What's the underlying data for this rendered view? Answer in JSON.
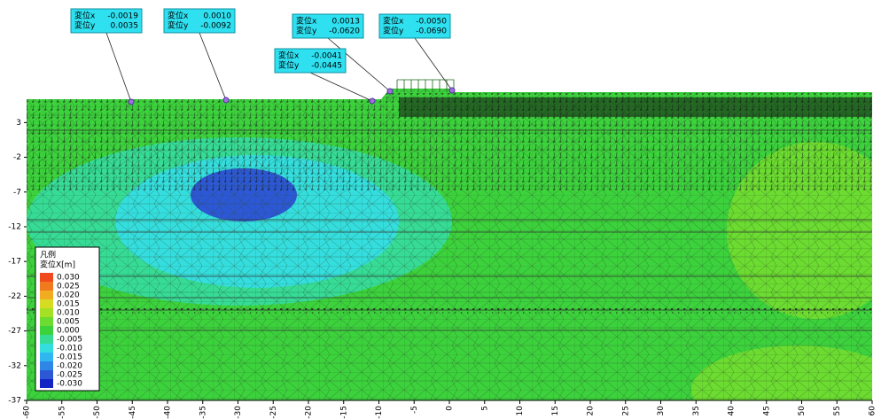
{
  "chart_data": {
    "type": "contour",
    "xlim": [
      -60,
      60
    ],
    "ylim": [
      -37,
      7
    ],
    "xticks": [
      -60,
      -55,
      -50,
      -45,
      -40,
      -35,
      -30,
      -25,
      -20,
      -15,
      -10,
      -5,
      0,
      5,
      10,
      15,
      20,
      25,
      30,
      35,
      40,
      45,
      50,
      55,
      60
    ],
    "yticks": [
      3,
      -2,
      -7,
      -12,
      -17,
      -22,
      -27,
      -32,
      -37
    ],
    "legend": {
      "title": "凡例",
      "subtitle": "変位X[m]",
      "entries": [
        {
          "value": 0.03,
          "label": "0.030",
          "color": "#f04a1c"
        },
        {
          "value": 0.025,
          "label": "0.025",
          "color": "#f27a1e"
        },
        {
          "value": 0.02,
          "label": "0.020",
          "color": "#f2ac22"
        },
        {
          "value": 0.015,
          "label": "0.015",
          "color": "#d6dc22"
        },
        {
          "value": 0.01,
          "label": "0.010",
          "color": "#a4e024"
        },
        {
          "value": 0.005,
          "label": "0.005",
          "color": "#6cdc30"
        },
        {
          "value": 0,
          "label": "0.000",
          "color": "#3cd23c"
        },
        {
          "value": -0.005,
          "label": "-0.005",
          "color": "#36dc96"
        },
        {
          "value": -0.01,
          "label": "-0.010",
          "color": "#34dede"
        },
        {
          "value": -0.015,
          "label": "-0.015",
          "color": "#30b6f0"
        },
        {
          "value": -0.02,
          "label": "-0.020",
          "color": "#2e86e6"
        },
        {
          "value": -0.025,
          "label": "-0.025",
          "color": "#2c58d6"
        },
        {
          "value": -0.03,
          "label": "-0.030",
          "color": "#1424c4"
        }
      ]
    },
    "probes": [
      {
        "label_x": "変位x",
        "label_y": "変位y",
        "dx": {
          "value": -0.0019,
          "label": "-0.0019"
        },
        "dy": {
          "value": 0.0035,
          "label": "0.0035"
        }
      },
      {
        "label_x": "変位x",
        "label_y": "変位y",
        "dx": {
          "value": 0.001,
          "label": "0.0010"
        },
        "dy": {
          "value": -0.0092,
          "label": "-0.0092"
        }
      },
      {
        "label_x": "変位x",
        "label_y": "変位y",
        "dx": {
          "value": 0.0013,
          "label": "0.0013"
        },
        "dy": {
          "value": -0.062,
          "label": "-0.0620"
        }
      },
      {
        "label_x": "変位x",
        "label_y": "変位y",
        "dx": {
          "value": -0.005,
          "label": "-0.0050"
        },
        "dy": {
          "value": -0.069,
          "label": "-0.0690"
        }
      },
      {
        "label_x": "変位x",
        "label_y": "変位y",
        "dx": {
          "value": -0.0041,
          "label": "-0.0041"
        },
        "dy": {
          "value": -0.0445,
          "label": "-0.0445"
        }
      }
    ]
  }
}
